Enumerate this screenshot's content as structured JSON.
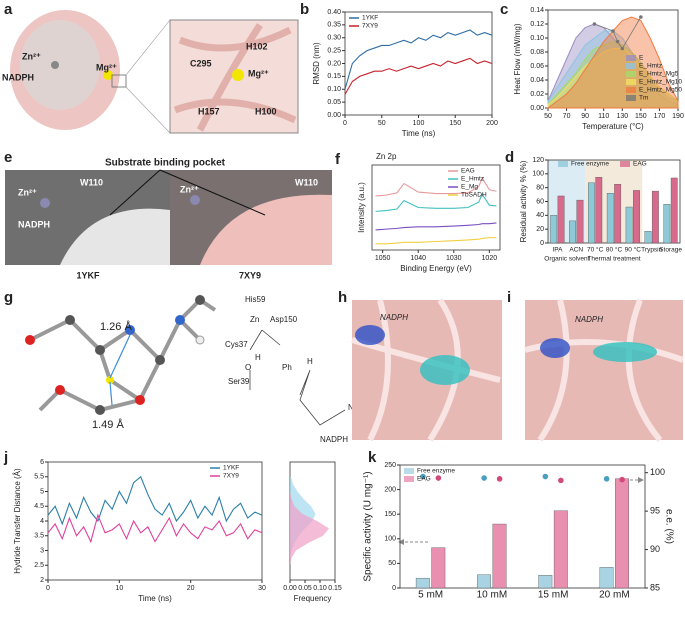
{
  "panels": {
    "a": {
      "label": "a",
      "texts": [
        "Zn²⁺",
        "NADPH",
        "Mg²⁺",
        "H102",
        "C295",
        "Mg²⁺",
        "H157",
        "H100"
      ]
    },
    "e": {
      "label": "e",
      "title": "Substrate binding pocket",
      "texts": [
        "W110",
        "Zn²⁺",
        "NADPH",
        "W110",
        "Zn²⁺"
      ],
      "names": [
        "1YKF",
        "7XY9"
      ]
    },
    "g": {
      "label": "g",
      "texts": [
        "1.26 Å",
        "1.49 Å",
        "His59",
        "Asp150",
        "Cys37",
        "Ser39",
        "Zn",
        "H",
        "O",
        "Ph",
        "H",
        "NH2",
        "NADPH"
      ]
    },
    "h": {
      "label": "h",
      "texts": [
        "NADPH"
      ]
    },
    "i": {
      "label": "i",
      "texts": [
        "NADPH"
      ]
    }
  },
  "chart_data": [
    {
      "label": "b",
      "type": "line",
      "xlabel": "Time (ns)",
      "ylabel": "RMSD (nm)",
      "x": [
        0,
        10,
        20,
        30,
        40,
        50,
        60,
        70,
        80,
        90,
        100,
        110,
        120,
        130,
        140,
        150,
        160,
        170,
        180,
        190,
        200
      ],
      "series": [
        {
          "name": "1YKF",
          "color": "#2e6da4",
          "values": [
            0.1,
            0.2,
            0.23,
            0.25,
            0.26,
            0.27,
            0.27,
            0.28,
            0.29,
            0.28,
            0.3,
            0.29,
            0.31,
            0.3,
            0.32,
            0.31,
            0.32,
            0.33,
            0.31,
            0.32,
            0.31
          ]
        },
        {
          "name": "7XY9",
          "color": "#c8202a",
          "values": [
            0.08,
            0.13,
            0.15,
            0.16,
            0.17,
            0.17,
            0.18,
            0.17,
            0.18,
            0.19,
            0.18,
            0.19,
            0.2,
            0.19,
            0.21,
            0.2,
            0.21,
            0.22,
            0.2,
            0.21,
            0.2
          ]
        }
      ],
      "xlim": [
        0,
        200
      ],
      "xticks": [
        0,
        50,
        100,
        150,
        200
      ],
      "ylim": [
        0,
        0.4
      ],
      "yticks": [
        {
          "value": 0,
          "label": "0.00"
        },
        0.05,
        {
          "value": 0.1,
          "label": "0.10"
        },
        0.15,
        {
          "value": 0.2,
          "label": "0.20"
        },
        0.25,
        {
          "value": 0.3,
          "label": "0.30"
        },
        0.35,
        {
          "value": 0.4,
          "label": "0.40"
        }
      ],
      "legend": "upper left"
    },
    {
      "label": "c",
      "type": "area",
      "xlabel": "Temperature (°C)",
      "ylabel": "Heat Flow (mW/mg)",
      "x": [
        50,
        60,
        70,
        80,
        90,
        100,
        110,
        120,
        130,
        140,
        150,
        160,
        170,
        180,
        190
      ],
      "series": [
        {
          "name": "E",
          "color": "#9b8ec4",
          "values": [
            0.01,
            0.04,
            0.07,
            0.1,
            0.115,
            0.12,
            0.115,
            0.1,
            0.085,
            0.07,
            0.05,
            0.035,
            0.02,
            0.01,
            0.005
          ]
        },
        {
          "name": "E_Hmtz",
          "color": "#8fc3e0",
          "values": [
            0.01,
            0.03,
            0.05,
            0.07,
            0.09,
            0.1,
            0.11,
            0.11,
            0.1,
            0.08,
            0.06,
            0.04,
            0.025,
            0.015,
            0.01
          ]
        },
        {
          "name": "E_Hmtz_Mg5",
          "color": "#a6d96a",
          "values": [
            0.005,
            0.02,
            0.035,
            0.05,
            0.07,
            0.085,
            0.09,
            0.095,
            0.09,
            0.08,
            0.065,
            0.045,
            0.03,
            0.02,
            0.01
          ]
        },
        {
          "name": "E_Hmtz_Mg10",
          "color": "#f2e060",
          "values": [
            0.005,
            0.015,
            0.03,
            0.045,
            0.06,
            0.07,
            0.08,
            0.085,
            0.085,
            0.075,
            0.06,
            0.045,
            0.03,
            0.02,
            0.01
          ]
        },
        {
          "name": "E_Hmtz_Mg50",
          "color": "#f07a40",
          "values": [
            0,
            0.01,
            0.02,
            0.035,
            0.055,
            0.075,
            0.095,
            0.11,
            0.125,
            0.13,
            0.125,
            0.1,
            0.07,
            0.035,
            0.01
          ]
        },
        {
          "name": "Tm",
          "color": "#777777",
          "x": [
            100,
            120,
            125,
            130,
            150
          ],
          "values": [
            0.12,
            0.11,
            0.095,
            0.085,
            0.13
          ]
        }
      ],
      "xlim": [
        50,
        190
      ],
      "xticks": [
        50,
        70,
        90,
        110,
        130,
        150,
        170,
        190
      ],
      "ylim": [
        0,
        0.14
      ],
      "yticks": [
        {
          "value": 0,
          "label": "0.00"
        },
        0.02,
        0.04,
        0.06,
        0.08,
        {
          "value": 0.1,
          "label": "0.10"
        },
        0.12,
        0.14
      ],
      "legend": "lower right"
    },
    {
      "label": "d",
      "type": "bar",
      "ylabel": "Residual activity % (%)",
      "categories": [
        "IPA",
        "ACN",
        "70 °C",
        "80 °C",
        "90 °C",
        "Trypsin",
        "Storage"
      ],
      "groups": [
        {
          "name": "Organic solvent",
          "categories": [
            "IPA",
            "ACN"
          ],
          "color": "#dcecf4"
        },
        {
          "name": "Thermal treatment",
          "categories": [
            "70 °C",
            "80 °C",
            "90 °C"
          ],
          "color": "#f4eadc"
        }
      ],
      "series": [
        {
          "name": "Free enzyme",
          "color": "#8ec9d8",
          "values": [
            40,
            32,
            87,
            72,
            52,
            17,
            56
          ]
        },
        {
          "name": "EAG",
          "color": "#d76b8c",
          "values": [
            68,
            62,
            95,
            85,
            76,
            75,
            94
          ]
        }
      ],
      "ylim": [
        0,
        120
      ],
      "yticks": [
        0,
        20,
        40,
        60,
        80,
        100,
        120
      ],
      "legend": "upper center"
    },
    {
      "label": "f",
      "type": "line",
      "title": "Zn 2p",
      "xlabel": "Binding Energy (eV)",
      "ylabel": "Intensity (a.u.)",
      "x": [
        1052,
        1049,
        1046,
        1044,
        1040,
        1035,
        1030,
        1026,
        1023,
        1022,
        1020,
        1018
      ],
      "series": [
        {
          "name": "EAG",
          "color": "#e89a9a",
          "values": [
            7,
            7.1,
            7.4,
            8.6,
            7.5,
            7.3,
            7.3,
            7.4,
            8.2,
            9.3,
            7.8,
            7.6
          ]
        },
        {
          "name": "E_Hmtz",
          "color": "#40c0c0",
          "values": [
            5,
            5.1,
            5.3,
            6.4,
            5.5,
            5.4,
            5.4,
            5.5,
            6.2,
            7.2,
            5.8,
            5.7
          ]
        },
        {
          "name": "E_Mg",
          "color": "#7a4fc0",
          "values": [
            2.6,
            2.7,
            2.8,
            2.9,
            3,
            3,
            3.1,
            3.2,
            3.3,
            3.4,
            3.4,
            3.5
          ]
        },
        {
          "name": "TbSADH",
          "color": "#f0d040",
          "values": [
            0.8,
            0.8,
            0.9,
            1,
            1,
            1.1,
            1.2,
            1.3,
            1.4,
            1.5,
            1.6,
            1.6
          ]
        }
      ],
      "xlim": [
        1053,
        1017
      ],
      "xticks": [
        1050,
        1040,
        1030,
        1020
      ],
      "ylim": [
        0,
        11
      ],
      "yticks": [],
      "legend": "upper right"
    },
    {
      "label": "j",
      "type": "line",
      "xlabel": "Time (ns)",
      "ylabel": "Hydride Transfer Distance (Å)",
      "x": [
        0,
        1,
        2,
        3,
        4,
        5,
        6,
        7,
        8,
        9,
        10,
        11,
        12,
        13,
        14,
        15,
        16,
        17,
        18,
        19,
        20,
        21,
        22,
        23,
        24,
        25,
        26,
        27,
        28,
        29,
        30
      ],
      "series": [
        {
          "name": "1YKF",
          "color": "#2a7fa8",
          "values": [
            4.2,
            4.5,
            3.9,
            4.6,
            4.1,
            4.8,
            4.3,
            4.0,
            4.7,
            4.4,
            5.0,
            4.6,
            5.3,
            5.5,
            4.9,
            4.4,
            4.2,
            4.6,
            4.0,
            4.3,
            4.7,
            4.1,
            4.5,
            4.2,
            4.8,
            4.0,
            4.4,
            4.6,
            4.1,
            4.3,
            4.2
          ]
        },
        {
          "name": "7XY9",
          "color": "#e0409a",
          "values": [
            3.6,
            3.9,
            3.4,
            4.1,
            3.5,
            3.8,
            3.3,
            4.2,
            3.6,
            3.7,
            3.9,
            3.4,
            4.0,
            3.6,
            3.8,
            3.3,
            3.7,
            4.1,
            3.5,
            3.9,
            3.6,
            3.4,
            3.8,
            3.7,
            4.0,
            3.5,
            3.6,
            3.9,
            3.4,
            3.7,
            3.6
          ]
        }
      ],
      "xlim": [
        0,
        30
      ],
      "xticks": [
        0,
        10,
        20,
        30
      ],
      "ylim": [
        2,
        6
      ],
      "yticks": [
        2,
        2.5,
        3,
        3.5,
        4,
        4.5,
        5,
        5.5,
        6
      ],
      "legend": "upper right"
    },
    {
      "type": "density",
      "xlabel": "Frequency",
      "y": [
        2.5,
        2.75,
        3,
        3.25,
        3.5,
        3.75,
        4,
        4.25,
        4.5,
        4.75,
        5,
        5.25,
        5.5
      ],
      "series": [
        {
          "color": "#9fd8ee",
          "values": [
            0,
            0,
            0.005,
            0.015,
            0.03,
            0.05,
            0.075,
            0.085,
            0.07,
            0.045,
            0.025,
            0.01,
            0.003
          ]
        },
        {
          "color": "#f1a0c8",
          "values": [
            0,
            0.005,
            0.02,
            0.06,
            0.11,
            0.13,
            0.09,
            0.04,
            0.015,
            0.005,
            0,
            0,
            0
          ]
        }
      ],
      "xlim": [
        0,
        0.15
      ],
      "xticks": [
        {
          "value": 0,
          "label": "0.00"
        },
        0.05,
        {
          "value": 0.1,
          "label": "0.10"
        },
        0.15
      ],
      "ylim": [
        2,
        6
      ]
    },
    {
      "label": "k",
      "type": "bar",
      "ylabel": "Specific activity (U mg⁻¹)",
      "y2label": "e.e. (%)",
      "categories": [
        "5 mM",
        "10 mM",
        "15 mM",
        "20 mM"
      ],
      "series": [
        {
          "name": "Free enzyme",
          "color": "#a9d3e2",
          "values": [
            20,
            27,
            26,
            42
          ]
        },
        {
          "name": "EAG",
          "color": "#e98fb0",
          "values": [
            82,
            130,
            157,
            222
          ]
        },
        {
          "color": "#4a9fc0",
          "axis": "y2",
          "values": [
            99.5,
            99.3,
            99.5,
            99.2
          ]
        },
        {
          "color": "#d04a7a",
          "axis": "y2",
          "values": [
            99.3,
            99.2,
            99.0,
            99.1
          ]
        }
      ],
      "ylim": [
        0,
        250
      ],
      "yticks": [
        0,
        50,
        100,
        150,
        200,
        250
      ],
      "y2lim": [
        85,
        101
      ],
      "y2ticks": [
        85,
        90,
        95,
        100
      ],
      "legend": "upper left"
    }
  ]
}
